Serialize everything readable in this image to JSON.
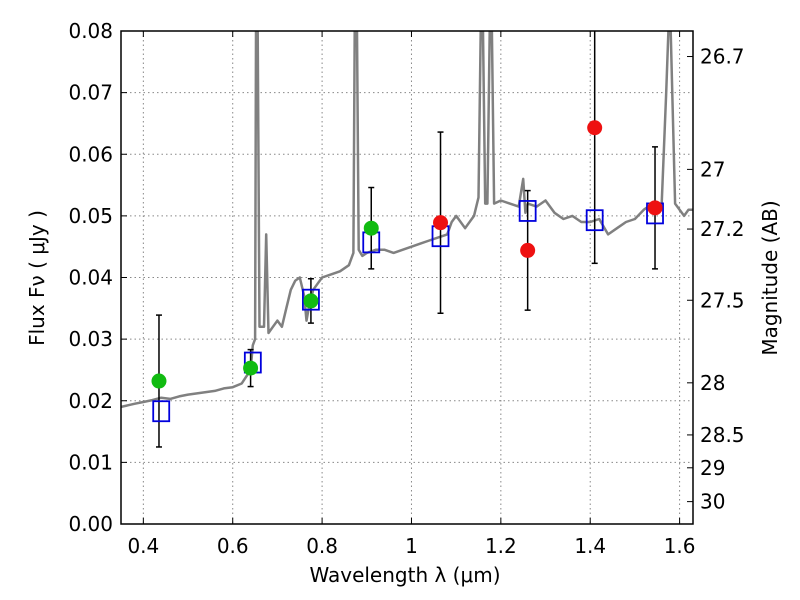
{
  "chart_data": {
    "type": "scatter",
    "xlabel": "Wavelength  λ (μm)",
    "ylabel": "Flux  Fν  ( μJy )",
    "y2label": "Magnitude (AB)",
    "xlim": [
      0.35,
      1.63
    ],
    "ylim": [
      0.0,
      0.08
    ],
    "grid": true,
    "x_ticks": [
      0.4,
      0.6,
      0.8,
      1.0,
      1.2,
      1.4,
      1.6
    ],
    "x_tick_labels": [
      "0.4",
      "0.6",
      "0.8",
      "1",
      "1.2",
      "1.4",
      "1.6"
    ],
    "y_ticks": [
      0.0,
      0.01,
      0.02,
      0.03,
      0.04,
      0.05,
      0.06,
      0.07,
      0.08
    ],
    "y_tick_labels": [
      "0.00",
      "0.01",
      "0.02",
      "0.03",
      "0.04",
      "0.05",
      "0.06",
      "0.07",
      "0.08"
    ],
    "y2_ticks": [
      26.7,
      27,
      27.2,
      27.5,
      28,
      28.5,
      29,
      30
    ],
    "y2_tick_labels": [
      "26.7",
      "27",
      "27.2",
      "27.5",
      "28",
      "28.5",
      "29",
      "30"
    ],
    "colors": {
      "spectrum": "#808080",
      "green": "#11bb11",
      "red": "#ee1111",
      "model": "#0000dd",
      "errorbar": "#000000",
      "grid": "#888888"
    },
    "observed_points": [
      {
        "x": 0.435,
        "y": 0.0232,
        "err": 0.0107,
        "color": "green"
      },
      {
        "x": 0.64,
        "y": 0.0253,
        "err": 0.003,
        "color": "green"
      },
      {
        "x": 0.775,
        "y": 0.0362,
        "err": 0.0036,
        "color": "green"
      },
      {
        "x": 0.91,
        "y": 0.048,
        "err": 0.0066,
        "color": "green"
      },
      {
        "x": 1.065,
        "y": 0.0489,
        "err": 0.0147,
        "color": "red"
      },
      {
        "x": 1.26,
        "y": 0.0444,
        "err": 0.0097,
        "color": "red"
      },
      {
        "x": 1.41,
        "y": 0.0643,
        "err": 0.022,
        "color": "red"
      },
      {
        "x": 1.545,
        "y": 0.0513,
        "err": 0.0099,
        "color": "red"
      }
    ],
    "model_points": [
      {
        "x": 0.44,
        "y": 0.0183
      },
      {
        "x": 0.645,
        "y": 0.0262
      },
      {
        "x": 0.775,
        "y": 0.0364
      },
      {
        "x": 0.91,
        "y": 0.0457
      },
      {
        "x": 1.065,
        "y": 0.0467
      },
      {
        "x": 1.26,
        "y": 0.0508
      },
      {
        "x": 1.41,
        "y": 0.0493
      },
      {
        "x": 1.545,
        "y": 0.0504
      }
    ],
    "spectrum": [
      [
        0.35,
        0.019
      ],
      [
        0.38,
        0.0195
      ],
      [
        0.4,
        0.0198
      ],
      [
        0.42,
        0.0201
      ],
      [
        0.44,
        0.0205
      ],
      [
        0.46,
        0.0203
      ],
      [
        0.48,
        0.0207
      ],
      [
        0.5,
        0.021
      ],
      [
        0.52,
        0.0212
      ],
      [
        0.54,
        0.0214
      ],
      [
        0.56,
        0.0216
      ],
      [
        0.58,
        0.022
      ],
      [
        0.6,
        0.0222
      ],
      [
        0.62,
        0.0228
      ],
      [
        0.64,
        0.025
      ],
      [
        0.645,
        0.029
      ],
      [
        0.65,
        0.03
      ],
      [
        0.652,
        0.08
      ],
      [
        0.656,
        0.08
      ],
      [
        0.66,
        0.032
      ],
      [
        0.67,
        0.032
      ],
      [
        0.675,
        0.047
      ],
      [
        0.68,
        0.031
      ],
      [
        0.69,
        0.032
      ],
      [
        0.7,
        0.033
      ],
      [
        0.71,
        0.032
      ],
      [
        0.72,
        0.035
      ],
      [
        0.73,
        0.038
      ],
      [
        0.74,
        0.0395
      ],
      [
        0.75,
        0.04
      ],
      [
        0.76,
        0.037
      ],
      [
        0.765,
        0.033
      ],
      [
        0.77,
        0.035
      ],
      [
        0.78,
        0.038
      ],
      [
        0.79,
        0.039
      ],
      [
        0.8,
        0.04
      ],
      [
        0.82,
        0.0405
      ],
      [
        0.84,
        0.041
      ],
      [
        0.86,
        0.042
      ],
      [
        0.87,
        0.044
      ],
      [
        0.873,
        0.08
      ],
      [
        0.878,
        0.08
      ],
      [
        0.882,
        0.0445
      ],
      [
        0.89,
        0.0435
      ],
      [
        0.9,
        0.044
      ],
      [
        0.92,
        0.0445
      ],
      [
        0.94,
        0.0445
      ],
      [
        0.96,
        0.044
      ],
      [
        0.98,
        0.0445
      ],
      [
        1.0,
        0.045
      ],
      [
        1.02,
        0.0455
      ],
      [
        1.04,
        0.046
      ],
      [
        1.06,
        0.0465
      ],
      [
        1.08,
        0.047
      ],
      [
        1.09,
        0.049
      ],
      [
        1.1,
        0.05
      ],
      [
        1.12,
        0.048
      ],
      [
        1.14,
        0.05
      ],
      [
        1.15,
        0.053
      ],
      [
        1.155,
        0.08
      ],
      [
        1.16,
        0.08
      ],
      [
        1.165,
        0.052
      ],
      [
        1.17,
        0.052
      ],
      [
        1.175,
        0.08
      ],
      [
        1.18,
        0.08
      ],
      [
        1.185,
        0.052
      ],
      [
        1.2,
        0.0525
      ],
      [
        1.22,
        0.052
      ],
      [
        1.24,
        0.0515
      ],
      [
        1.25,
        0.056
      ],
      [
        1.255,
        0.0505
      ],
      [
        1.26,
        0.052
      ],
      [
        1.28,
        0.0515
      ],
      [
        1.3,
        0.0525
      ],
      [
        1.32,
        0.0505
      ],
      [
        1.34,
        0.0495
      ],
      [
        1.36,
        0.05
      ],
      [
        1.38,
        0.049
      ],
      [
        1.4,
        0.049
      ],
      [
        1.42,
        0.0495
      ],
      [
        1.44,
        0.047
      ],
      [
        1.46,
        0.048
      ],
      [
        1.48,
        0.049
      ],
      [
        1.5,
        0.0495
      ],
      [
        1.52,
        0.051
      ],
      [
        1.54,
        0.052
      ],
      [
        1.56,
        0.052
      ],
      [
        1.57,
        0.07
      ],
      [
        1.575,
        0.08
      ],
      [
        1.58,
        0.08
      ],
      [
        1.59,
        0.052
      ],
      [
        1.6,
        0.051
      ],
      [
        1.61,
        0.05
      ],
      [
        1.62,
        0.051
      ],
      [
        1.63,
        0.051
      ]
    ]
  }
}
